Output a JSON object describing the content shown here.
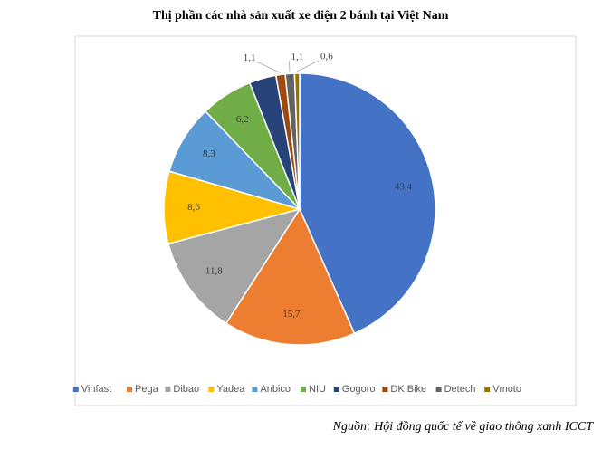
{
  "chart_data": {
    "type": "pie",
    "title": "Thị phần các nhà sản xuất xe điện 2 bánh tại Việt Nam",
    "categories": [
      "Vinfast",
      "Pega",
      "Dibao",
      "Yadea",
      "Anbico",
      "NIU",
      "Gogoro",
      "DK Bike",
      "Detech",
      "Vmoto"
    ],
    "values": [
      43.4,
      15.7,
      11.8,
      8.6,
      8.3,
      6.2,
      3.2,
      1.1,
      1.1,
      0.6
    ],
    "value_labels": [
      "43,4",
      "15,7",
      "11,8",
      "8,6",
      "8,3",
      "6,2",
      null,
      "1,1",
      "1,1",
      "0,6"
    ],
    "colors": [
      "#4472c4",
      "#ed7d31",
      "#a5a5a5",
      "#ffc000",
      "#5b9bd5",
      "#70ad47",
      "#264478",
      "#9e480e",
      "#636363",
      "#997300"
    ],
    "legend": "bottom",
    "source": "Nguồn: Hội đồng quốc tế về giao thông xanh ICCT"
  }
}
